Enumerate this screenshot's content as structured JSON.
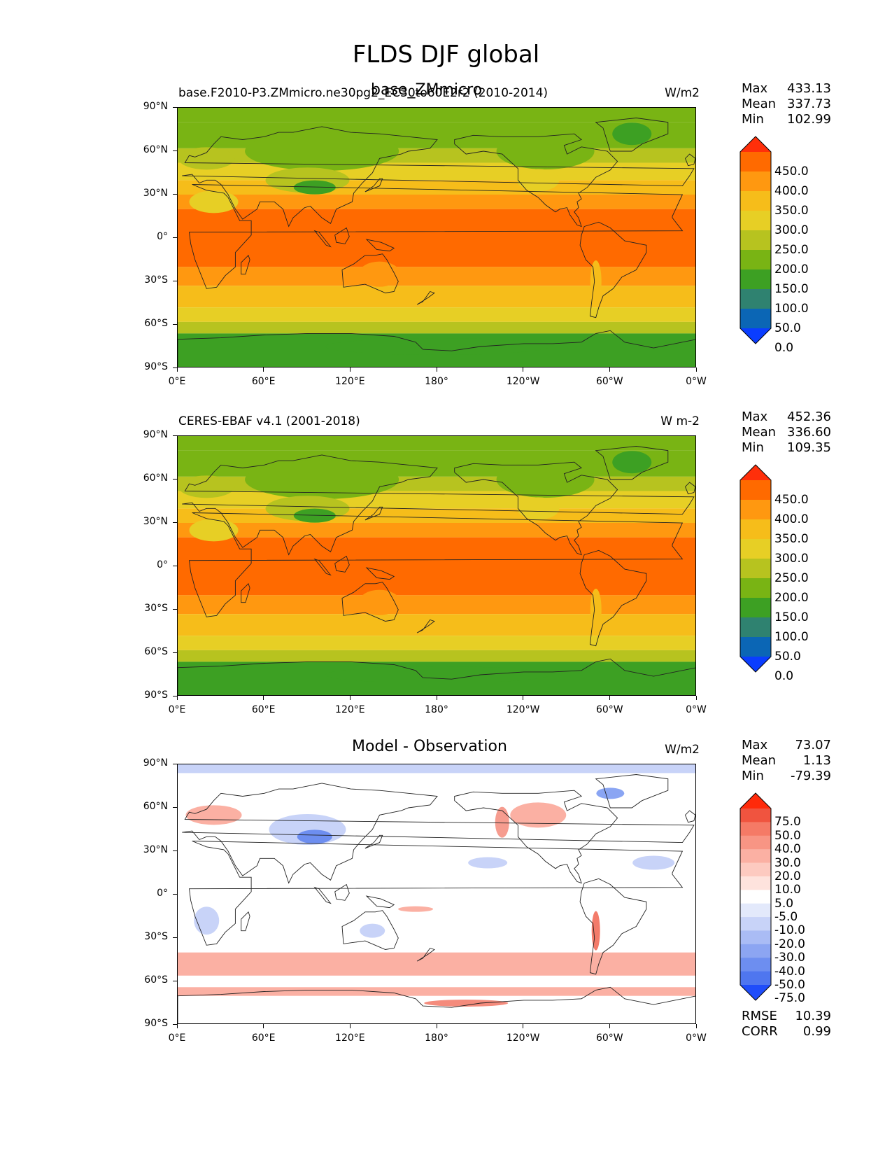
{
  "figure": {
    "title": "FLDS DJF global"
  },
  "panels": [
    {
      "left_title": "base.F2010-P3.ZMmicro.ne30pg2_EC30to60E2r2 (2010-2014)",
      "center_title": "base_ZMmicro",
      "units": "W/m2",
      "stats": {
        "max_label": "Max",
        "max": "433.13",
        "mean_label": "Mean",
        "mean": "337.73",
        "min_label": "Min",
        "min": "102.99"
      },
      "colorbar": {
        "labels": [
          "450.0",
          "400.0",
          "350.0",
          "300.0",
          "250.0",
          "200.0",
          "150.0",
          "100.0",
          "50.0",
          "0.0"
        ],
        "colors": [
          "#ff2f0a",
          "#ff6a00",
          "#ff9810",
          "#f6bd1a",
          "#e7cf25",
          "#b7c31f",
          "#79b414",
          "#3da023",
          "#2f8270",
          "#0b66b5",
          "#0a3dff"
        ]
      }
    },
    {
      "left_title": "CERES-EBAF v4.1 (2001-2018)",
      "center_title": "",
      "units": "W m-2",
      "stats": {
        "max_label": "Max",
        "max": "452.36",
        "mean_label": "Mean",
        "mean": "336.60",
        "min_label": "Min",
        "min": "109.35"
      },
      "colorbar": {
        "labels": [
          "450.0",
          "400.0",
          "350.0",
          "300.0",
          "250.0",
          "200.0",
          "150.0",
          "100.0",
          "50.0",
          "0.0"
        ],
        "colors": [
          "#ff2f0a",
          "#ff6a00",
          "#ff9810",
          "#f6bd1a",
          "#e7cf25",
          "#b7c31f",
          "#79b414",
          "#3da023",
          "#2f8270",
          "#0b66b5",
          "#0a3dff"
        ]
      }
    },
    {
      "left_title": "",
      "center_title": "Model - Observation",
      "units": "W/m2",
      "stats": {
        "max_label": "Max",
        "max": "73.07",
        "mean_label": "Mean",
        "mean": "1.13",
        "min_label": "Min",
        "min": "-79.39"
      },
      "colorbar": {
        "labels": [
          "75.0",
          "50.0",
          "40.0",
          "30.0",
          "20.0",
          "10.0",
          "5.0",
          "-5.0",
          "-10.0",
          "-20.0",
          "-30.0",
          "-40.0",
          "-50.0",
          "-75.0"
        ],
        "colors": [
          "#ff2a0a",
          "#f0543f",
          "#f57a66",
          "#f89584",
          "#fbb0a3",
          "#fdcac0",
          "#fee3dd",
          "#ffffff",
          "#e3e9fb",
          "#c8d3f8",
          "#aabcf5",
          "#8ca5f2",
          "#6d8ef0",
          "#4f76ef",
          "#1f4dfa"
        ]
      },
      "extra": {
        "rmse_label": "RMSE",
        "rmse": "10.39",
        "corr_label": "CORR",
        "corr": "0.99"
      }
    }
  ],
  "axes": {
    "lat_ticks": [
      "90°N",
      "60°N",
      "30°N",
      "0°",
      "30°S",
      "60°S",
      "90°S"
    ],
    "lon_ticks": [
      "0°E",
      "60°E",
      "120°E",
      "180°",
      "120°W",
      "60°W",
      "0°W"
    ]
  },
  "map_colors": {
    "polar": "#3da023",
    "subpolar": "#79b414",
    "mid": "#b7c31f",
    "midwarm": "#e7cf25",
    "warm": "#f6bd1a",
    "subtropic": "#ff9810",
    "tropic": "#ff6a00",
    "diff_bg": "#ffffff",
    "diff_pos": "#fbb0a3",
    "diff_pos_strong": "#f05a45",
    "diff_neg": "#c8d3f8",
    "diff_neg_strong": "#6d8ef0"
  }
}
